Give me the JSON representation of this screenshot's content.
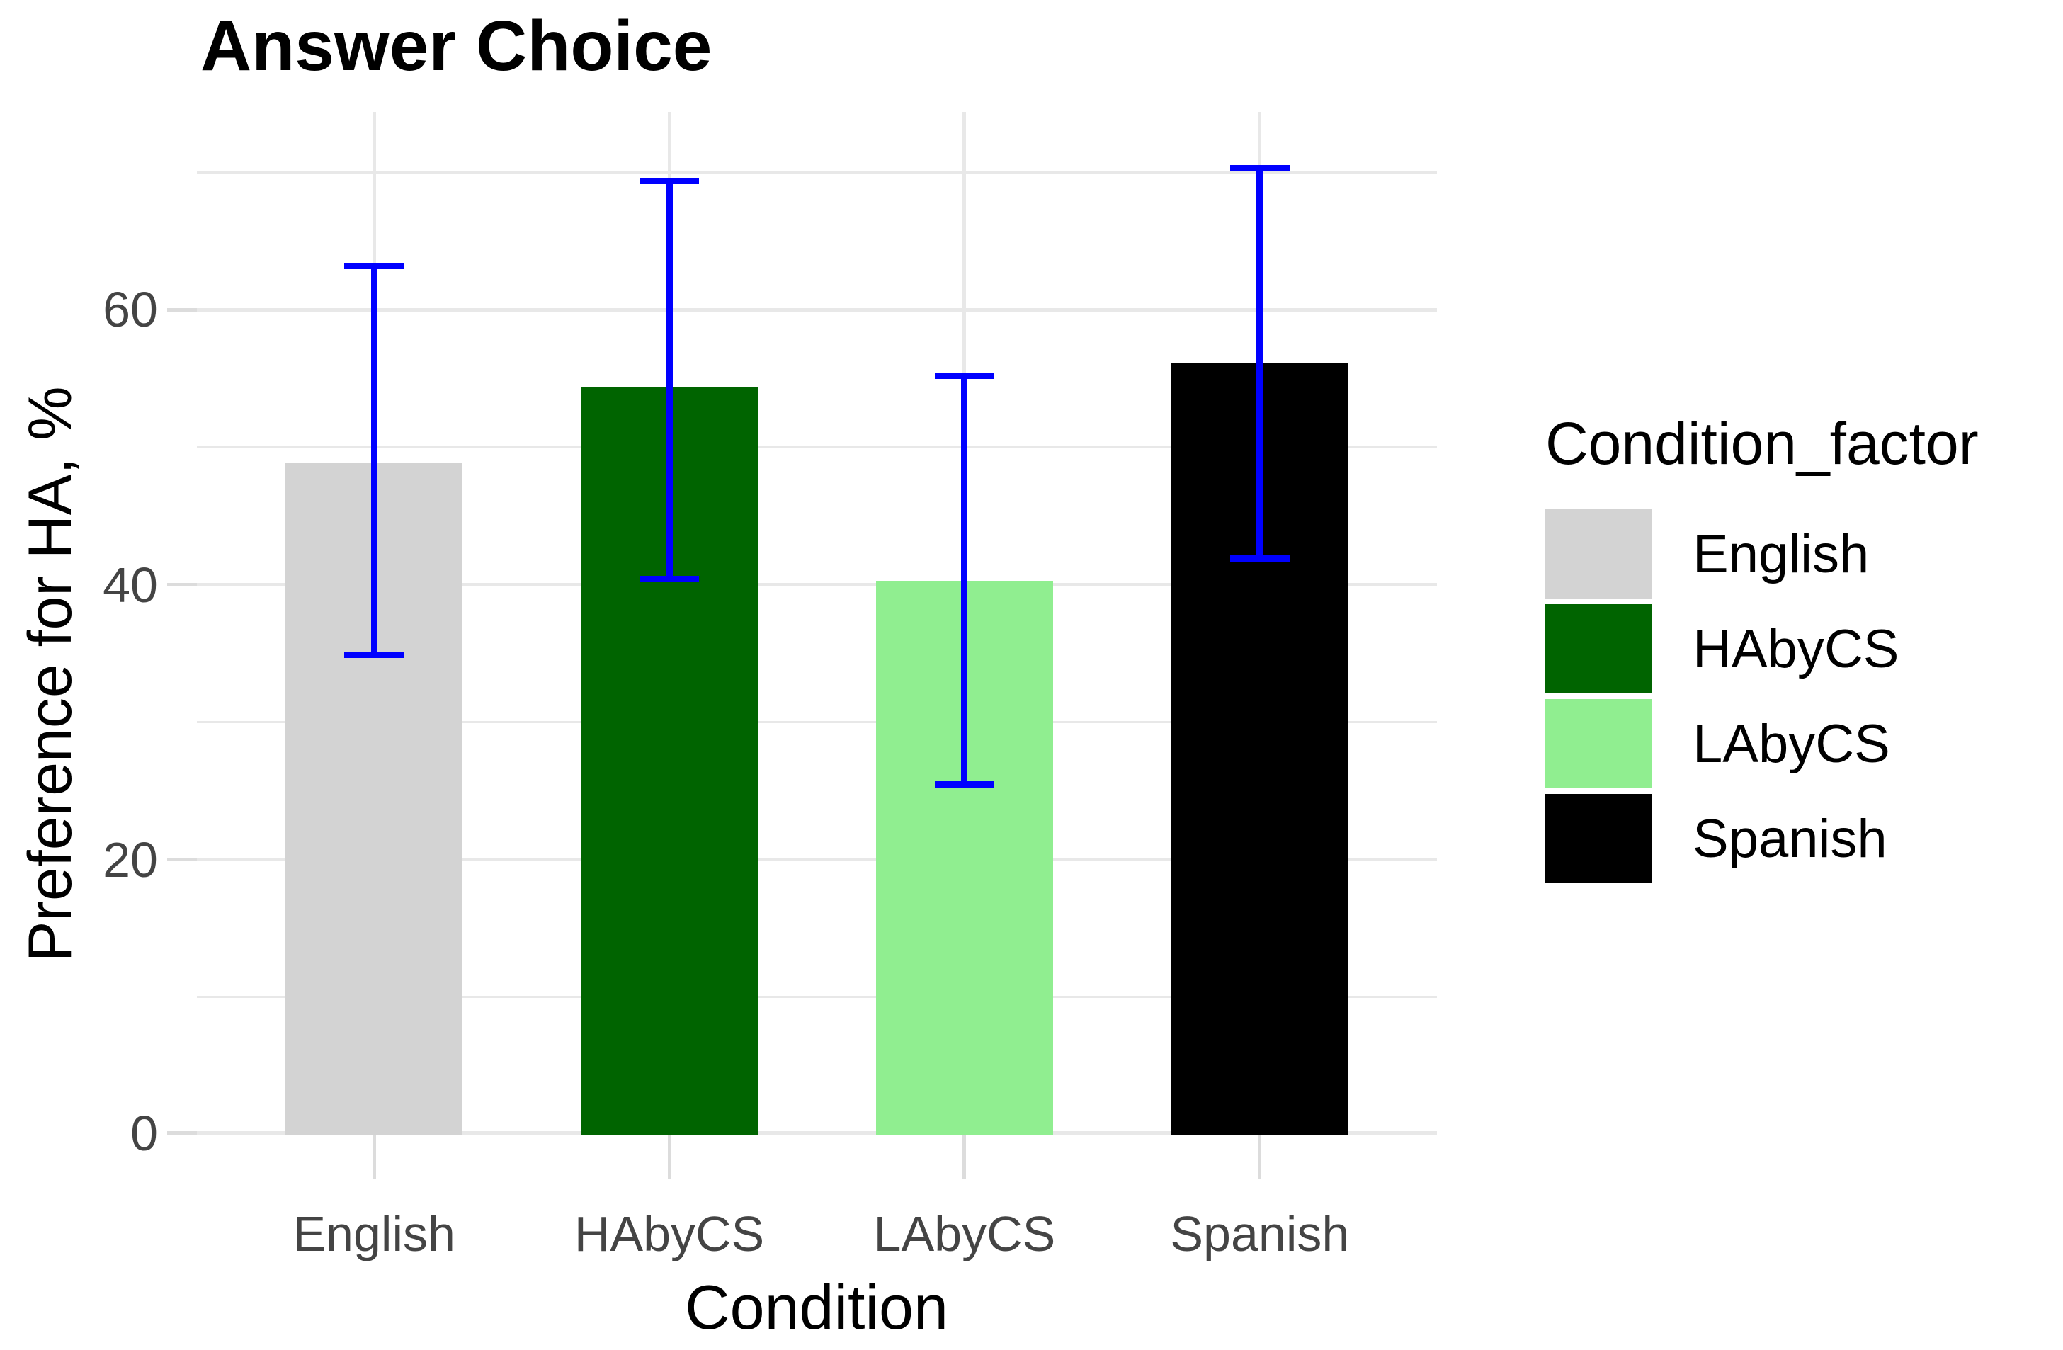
{
  "chart_data": {
    "type": "bar",
    "title": "Answer Choice",
    "xlabel": "Condition",
    "ylabel": "Preference for HA, %",
    "categories": [
      "English",
      "HAbyCS",
      "LAbyCS",
      "Spanish"
    ],
    "values": [
      48.9,
      54.4,
      40.3,
      56.1
    ],
    "error_low": [
      34.9,
      40.4,
      25.5,
      41.9
    ],
    "error_high": [
      63.2,
      69.4,
      55.2,
      70.3
    ],
    "bar_colors": [
      "#D3D3D3",
      "#006400",
      "#90EE90",
      "#000000"
    ],
    "error_bar_color": "#0000FF",
    "yticks": [
      0,
      20,
      40,
      60
    ],
    "yticks_minor": [
      10,
      30,
      50,
      70
    ],
    "ylim": [
      0,
      74.4
    ],
    "grid": true,
    "grid_color": "#E8E8E8",
    "legend_position": "right",
    "legend": {
      "title": "Condition_factor",
      "entries": [
        {
          "label": "English",
          "color": "#D3D3D3"
        },
        {
          "label": "HAbyCS",
          "color": "#006400"
        },
        {
          "label": "LAbyCS",
          "color": "#90EE90"
        },
        {
          "label": "Spanish",
          "color": "#000000"
        }
      ]
    }
  }
}
